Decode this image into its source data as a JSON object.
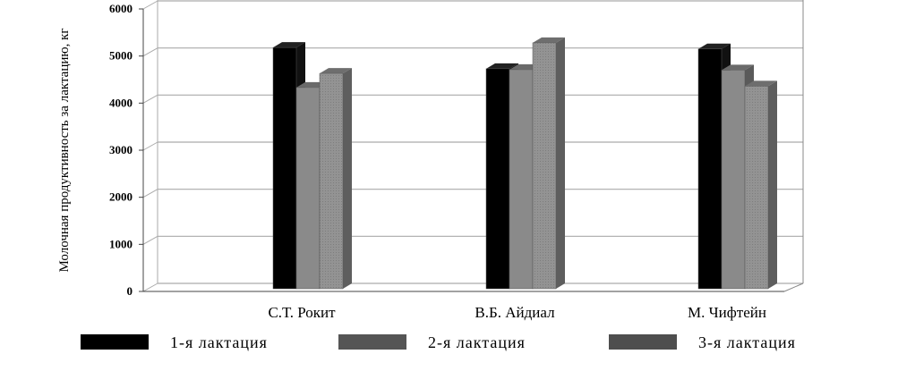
{
  "chart_data": {
    "type": "bar",
    "title": "",
    "xlabel": "",
    "ylabel": "Молочная продуктивность за лактацию, кг",
    "ylim": [
      0,
      6000
    ],
    "yticks": [
      "0",
      "1000",
      "2000",
      "3000",
      "4000",
      "5000",
      "6000"
    ],
    "grid": true,
    "legend_position": "bottom",
    "categories": [
      "С.Т. Рокит",
      "В.Б. Айдиал",
      "М. Чифтейн"
    ],
    "series": [
      {
        "name": "1-я лактация",
        "values": [
          5200,
          4750,
          5170
        ],
        "color": "#000000"
      },
      {
        "name": "2-я лактация",
        "values": [
          4350,
          4730,
          4720
        ],
        "color": "#8a8a8a"
      },
      {
        "name": "3-я лактация",
        "values": [
          4650,
          5300,
          4380
        ],
        "color": "#939393"
      }
    ]
  }
}
